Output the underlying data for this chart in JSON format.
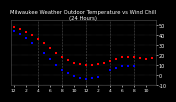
{
  "title": "Milwaukee Weather Outdoor Temperature vs Wind Chill\n(24 Hours)",
  "title_fontsize": 3.8,
  "background_color": "#000000",
  "plot_bg_color": "#000000",
  "grid_color": "#555555",
  "temp_color": "#ff0000",
  "windchill_color": "#0000ff",
  "temp_x": [
    0,
    1,
    2,
    3,
    4,
    5,
    6,
    7,
    8,
    9,
    10,
    11,
    12,
    13,
    14,
    15,
    16,
    17,
    18,
    19,
    20,
    21,
    22,
    23
  ],
  "temp_y": [
    48,
    46,
    43,
    40,
    36,
    32,
    27,
    22,
    18,
    15,
    12,
    11,
    10,
    10,
    11,
    12,
    14,
    16,
    18,
    18,
    18,
    17,
    16,
    17
  ],
  "wc_x": [
    0,
    1,
    2,
    3,
    5,
    6,
    7,
    8,
    9,
    10,
    11,
    12,
    13,
    14,
    16,
    17,
    18,
    19,
    20
  ],
  "wc_y": [
    44,
    41,
    37,
    32,
    22,
    16,
    10,
    5,
    2,
    -1,
    -3,
    -4,
    -3,
    -2,
    5,
    7,
    9,
    9,
    9
  ],
  "ylim": [
    -10,
    55
  ],
  "xlim": [
    -0.5,
    23.5
  ],
  "yticks": [
    50,
    40,
    30,
    20,
    10,
    0,
    -10
  ],
  "ytick_labels": [
    "50",
    "40",
    "30",
    "20",
    "10",
    "0",
    "-10"
  ],
  "xticks": [
    0,
    2,
    4,
    6,
    8,
    10,
    12,
    14,
    16,
    18,
    20,
    22
  ],
  "xtick_labels": [
    "12",
    "2",
    "4",
    "6",
    "8",
    "10",
    "12",
    "2",
    "4",
    "6",
    "8",
    "10"
  ],
  "vgrid_positions": [
    4,
    8,
    12,
    16,
    20
  ],
  "marker_size": 1.5,
  "ylabel_fontsize": 3.5,
  "xlabel_fontsize": 3.2,
  "text_color": "#ffffff"
}
